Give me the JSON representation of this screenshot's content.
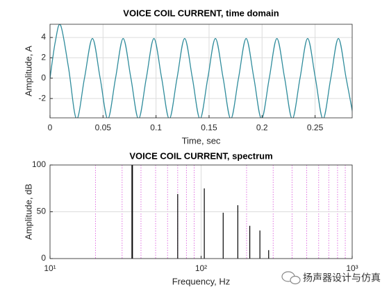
{
  "chart_data": [
    {
      "type": "line",
      "title": "VOICE COIL CURRENT, time domain",
      "xlabel": "Time, sec",
      "ylabel": "Amplitude, A",
      "x": [
        0,
        0.005,
        0.01,
        0.0175,
        0.025,
        0.0325,
        0.04,
        0.0473,
        0.0545,
        0.0618,
        0.069,
        0.0763,
        0.0835,
        0.0908,
        0.098,
        0.1053,
        0.1125,
        0.1198,
        0.127,
        0.1343,
        0.1415,
        0.1488,
        0.156,
        0.1633,
        0.1705,
        0.1778,
        0.185,
        0.1923,
        0.1995,
        0.2068,
        0.214,
        0.2213,
        0.2285,
        0.2358,
        0.243,
        0.2503,
        0.2575,
        0.2648,
        0.272,
        0.2793,
        0.2865
      ],
      "series": [
        {
          "color": "#2f8c9c",
          "values": [
            0,
            3.6,
            5.2,
            1.0,
            -4.0,
            0,
            3.9,
            0,
            -4.0,
            0,
            3.9,
            0,
            -4.0,
            0,
            3.9,
            0,
            -4.0,
            0,
            3.9,
            0,
            -4.0,
            0,
            3.9,
            0,
            -4.0,
            0,
            3.9,
            0,
            -4.0,
            0,
            3.9,
            0,
            -4.0,
            0,
            3.9,
            0,
            -4.0,
            0,
            3.9,
            0,
            -4.0
          ]
        }
      ],
      "xlim": [
        0,
        0.285
      ],
      "xticks": [
        0,
        0.05,
        0.1,
        0.15,
        0.2,
        0.25
      ],
      "ylim": [
        -3.9,
        5.3
      ],
      "yticks": [
        -2,
        0,
        2,
        4
      ],
      "grid": true
    },
    {
      "type": "stem",
      "title": "VOICE COIL CURRENT, spectrum",
      "xlabel": "Frequency, Hz",
      "ylabel": "Amplitude, dB",
      "x": [
        35,
        70,
        105,
        140,
        175,
        210,
        245,
        280
      ],
      "series": [
        {
          "color": "#000000",
          "values": [
            100,
            69,
            75,
            49,
            57,
            35,
            30,
            9
          ]
        }
      ],
      "xscale": "log",
      "xlim": [
        10,
        1000
      ],
      "xticks": [
        {
          "value": 10,
          "label": "10¹"
        },
        {
          "value": 100,
          "label": "10²"
        },
        {
          "value": 1000,
          "label": "10³"
        }
      ],
      "xminorticks": [
        20,
        30,
        40,
        50,
        60,
        70,
        80,
        90,
        200,
        300,
        400,
        500,
        600,
        700,
        800,
        900
      ],
      "minor_grid_color": "#e070e0",
      "ylim": [
        0,
        100
      ],
      "yticks": [
        0,
        50,
        100
      ],
      "grid": true
    }
  ],
  "watermark": "扬声器设计与仿真"
}
